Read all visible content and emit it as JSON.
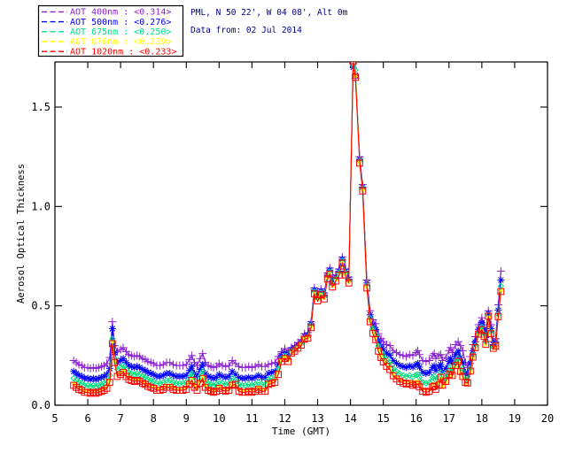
{
  "header": {
    "station_line": "PML, N 50 22', W 04 08', Alt 0m",
    "date_line": "Data from: 02 Jul 2014",
    "title_color": "#00008B"
  },
  "chart_data": {
    "type": "line",
    "title": "",
    "xlabel": "Time (GMT)",
    "ylabel": "Aerosol Optical Thickness",
    "xlim": [
      5,
      20
    ],
    "ylim": [
      0,
      1.727
    ],
    "xticks": [
      5,
      6,
      7,
      8,
      9,
      10,
      11,
      12,
      13,
      14,
      15,
      16,
      17,
      18,
      19,
      20
    ],
    "yticks": [
      0.0,
      0.5,
      1.0,
      1.5
    ],
    "ytick_labels": [
      "0.0",
      "0.5",
      "1.0",
      "1.5"
    ],
    "grid": false,
    "legend_position": "top-left",
    "x": [
      5.57,
      5.65,
      5.73,
      5.82,
      5.9,
      6.0,
      6.08,
      6.17,
      6.25,
      6.33,
      6.42,
      6.5,
      6.58,
      6.67,
      6.75,
      6.82,
      6.9,
      7.0,
      7.08,
      7.17,
      7.25,
      7.33,
      7.42,
      7.5,
      7.58,
      7.67,
      7.75,
      7.83,
      7.92,
      8.0,
      8.1,
      8.2,
      8.3,
      8.4,
      8.5,
      8.6,
      8.7,
      8.8,
      8.9,
      9.0,
      9.1,
      9.17,
      9.25,
      9.33,
      9.42,
      9.5,
      9.58,
      9.67,
      9.75,
      9.83,
      9.92,
      10.0,
      10.1,
      10.2,
      10.3,
      10.4,
      10.5,
      10.6,
      10.7,
      10.8,
      10.9,
      11.0,
      11.1,
      11.2,
      11.3,
      11.4,
      11.5,
      11.6,
      11.7,
      11.8,
      11.9,
      12.0,
      12.1,
      12.2,
      12.3,
      12.4,
      12.5,
      12.6,
      12.7,
      12.8,
      12.9,
      13.0,
      13.1,
      13.2,
      13.3,
      13.37,
      13.45,
      13.55,
      13.65,
      13.75,
      13.85,
      13.95,
      14.08,
      14.15,
      14.28,
      14.37,
      14.5,
      14.6,
      14.68,
      14.77,
      14.85,
      14.93,
      15.0,
      15.1,
      15.2,
      15.3,
      15.4,
      15.5,
      15.6,
      15.7,
      15.8,
      15.9,
      16.0,
      16.05,
      16.1,
      16.2,
      16.3,
      16.4,
      16.5,
      16.55,
      16.6,
      16.7,
      16.75,
      16.8,
      16.9,
      17.0,
      17.05,
      17.1,
      17.2,
      17.28,
      17.35,
      17.42,
      17.5,
      17.57,
      17.65,
      17.73,
      17.8,
      17.9,
      18.0,
      18.07,
      18.12,
      18.2,
      18.28,
      18.35,
      18.42,
      18.5,
      18.58
    ],
    "series": [
      {
        "name": "AOT  400nm",
        "mean_label": "<0.314>",
        "color": "#8B1FD1",
        "marker": "plus",
        "values": [
          0.225,
          0.215,
          0.205,
          0.2,
          0.19,
          0.19,
          0.185,
          0.19,
          0.185,
          0.19,
          0.195,
          0.2,
          0.21,
          0.24,
          0.42,
          0.3,
          0.27,
          0.28,
          0.29,
          0.27,
          0.255,
          0.25,
          0.245,
          0.25,
          0.245,
          0.235,
          0.23,
          0.22,
          0.215,
          0.21,
          0.2,
          0.2,
          0.205,
          0.215,
          0.215,
          0.205,
          0.2,
          0.2,
          0.2,
          0.205,
          0.23,
          0.25,
          0.215,
          0.2,
          0.235,
          0.26,
          0.215,
          0.2,
          0.195,
          0.19,
          0.195,
          0.21,
          0.2,
          0.195,
          0.2,
          0.225,
          0.21,
          0.195,
          0.19,
          0.19,
          0.195,
          0.19,
          0.195,
          0.205,
          0.195,
          0.195,
          0.205,
          0.21,
          0.215,
          0.245,
          0.27,
          0.285,
          0.27,
          0.29,
          0.3,
          0.315,
          0.33,
          0.36,
          0.365,
          0.42,
          0.59,
          0.555,
          0.585,
          0.565,
          0.665,
          0.69,
          0.625,
          0.655,
          0.685,
          0.745,
          0.685,
          0.645,
          1.72,
          1.645,
          1.25,
          1.11,
          0.63,
          0.475,
          0.43,
          0.41,
          0.36,
          0.335,
          0.32,
          0.305,
          0.3,
          0.275,
          0.265,
          0.255,
          0.25,
          0.245,
          0.255,
          0.25,
          0.265,
          0.275,
          0.255,
          0.225,
          0.22,
          0.225,
          0.25,
          0.26,
          0.235,
          0.25,
          0.255,
          0.225,
          0.24,
          0.275,
          0.29,
          0.265,
          0.305,
          0.32,
          0.3,
          0.275,
          0.215,
          0.19,
          0.245,
          0.305,
          0.345,
          0.405,
          0.44,
          0.405,
          0.365,
          0.475,
          0.405,
          0.32,
          0.335,
          0.505,
          0.675
        ]
      },
      {
        "name": "AOT  500nm",
        "mean_label": "<0.276>",
        "color": "#0000FF",
        "marker": "asterisk",
        "values": [
          0.17,
          0.16,
          0.15,
          0.145,
          0.135,
          0.135,
          0.13,
          0.135,
          0.13,
          0.135,
          0.14,
          0.145,
          0.155,
          0.185,
          0.385,
          0.265,
          0.215,
          0.225,
          0.235,
          0.215,
          0.2,
          0.195,
          0.19,
          0.195,
          0.19,
          0.18,
          0.175,
          0.165,
          0.16,
          0.155,
          0.145,
          0.145,
          0.15,
          0.16,
          0.16,
          0.15,
          0.145,
          0.145,
          0.145,
          0.15,
          0.175,
          0.195,
          0.16,
          0.145,
          0.18,
          0.205,
          0.16,
          0.145,
          0.14,
          0.135,
          0.14,
          0.155,
          0.145,
          0.14,
          0.145,
          0.17,
          0.155,
          0.14,
          0.135,
          0.135,
          0.14,
          0.135,
          0.14,
          0.15,
          0.14,
          0.14,
          0.16,
          0.165,
          0.17,
          0.205,
          0.25,
          0.265,
          0.25,
          0.278,
          0.288,
          0.303,
          0.318,
          0.348,
          0.353,
          0.41,
          0.58,
          0.545,
          0.575,
          0.555,
          0.655,
          0.68,
          0.615,
          0.645,
          0.675,
          0.735,
          0.675,
          0.635,
          1.7,
          1.66,
          1.238,
          1.098,
          0.615,
          0.455,
          0.405,
          0.38,
          0.325,
          0.298,
          0.28,
          0.262,
          0.252,
          0.225,
          0.212,
          0.2,
          0.195,
          0.19,
          0.198,
          0.192,
          0.205,
          0.21,
          0.192,
          0.165,
          0.16,
          0.165,
          0.19,
          0.198,
          0.175,
          0.192,
          0.205,
          0.17,
          0.185,
          0.22,
          0.235,
          0.212,
          0.255,
          0.272,
          0.24,
          0.215,
          0.165,
          0.155,
          0.21,
          0.275,
          0.318,
          0.382,
          0.415,
          0.38,
          0.34,
          0.462,
          0.385,
          0.305,
          0.318,
          0.478,
          0.63
        ]
      },
      {
        "name": "AOT  675nm",
        "mean_label": "<0.250>",
        "color": "#00E07F",
        "marker": "diamond",
        "values": [
          0.135,
          0.125,
          0.115,
          0.11,
          0.1,
          0.1,
          0.095,
          0.1,
          0.095,
          0.1,
          0.105,
          0.11,
          0.12,
          0.15,
          0.335,
          0.235,
          0.18,
          0.19,
          0.2,
          0.18,
          0.165,
          0.16,
          0.155,
          0.16,
          0.155,
          0.145,
          0.14,
          0.13,
          0.125,
          0.12,
          0.11,
          0.11,
          0.115,
          0.125,
          0.125,
          0.115,
          0.11,
          0.11,
          0.11,
          0.115,
          0.14,
          0.16,
          0.125,
          0.11,
          0.145,
          0.17,
          0.125,
          0.11,
          0.105,
          0.1,
          0.105,
          0.12,
          0.11,
          0.105,
          0.11,
          0.135,
          0.125,
          0.105,
          0.1,
          0.1,
          0.105,
          0.1,
          0.105,
          0.115,
          0.105,
          0.105,
          0.13,
          0.135,
          0.145,
          0.185,
          0.235,
          0.25,
          0.235,
          0.27,
          0.28,
          0.295,
          0.31,
          0.34,
          0.345,
          0.401,
          0.571,
          0.536,
          0.566,
          0.546,
          0.646,
          0.671,
          0.606,
          0.636,
          0.666,
          0.726,
          0.666,
          0.626,
          1.71,
          1.685,
          1.229,
          1.089,
          0.603,
          0.438,
          0.385,
          0.355,
          0.298,
          0.268,
          0.248,
          0.228,
          0.215,
          0.185,
          0.17,
          0.158,
          0.15,
          0.145,
          0.15,
          0.142,
          0.152,
          0.155,
          0.14,
          0.115,
          0.11,
          0.115,
          0.14,
          0.146,
          0.125,
          0.145,
          0.165,
          0.125,
          0.14,
          0.175,
          0.192,
          0.17,
          0.215,
          0.235,
          0.195,
          0.17,
          0.13,
          0.128,
          0.185,
          0.252,
          0.298,
          0.365,
          0.395,
          0.36,
          0.32,
          0.452,
          0.368,
          0.292,
          0.304,
          0.456,
          0.6
        ]
      },
      {
        "name": "AOT  870nm",
        "mean_label": "<0.239>",
        "color": "#FFFF00",
        "marker": "star",
        "values": [
          0.11,
          0.1,
          0.09,
          0.085,
          0.075,
          0.075,
          0.07,
          0.075,
          0.07,
          0.075,
          0.08,
          0.085,
          0.095,
          0.125,
          0.32,
          0.22,
          0.155,
          0.165,
          0.175,
          0.155,
          0.14,
          0.135,
          0.13,
          0.135,
          0.13,
          0.12,
          0.115,
          0.105,
          0.1,
          0.095,
          0.085,
          0.085,
          0.09,
          0.1,
          0.1,
          0.09,
          0.085,
          0.085,
          0.085,
          0.09,
          0.115,
          0.135,
          0.1,
          0.085,
          0.12,
          0.145,
          0.1,
          0.085,
          0.08,
          0.075,
          0.08,
          0.095,
          0.085,
          0.08,
          0.085,
          0.11,
          0.1,
          0.08,
          0.075,
          0.075,
          0.08,
          0.075,
          0.08,
          0.09,
          0.08,
          0.08,
          0.11,
          0.115,
          0.125,
          0.165,
          0.225,
          0.24,
          0.225,
          0.266,
          0.276,
          0.291,
          0.306,
          0.336,
          0.341,
          0.394,
          0.564,
          0.529,
          0.559,
          0.539,
          0.639,
          0.664,
          0.599,
          0.629,
          0.659,
          0.719,
          0.659,
          0.619,
          1.72,
          1.655,
          1.222,
          1.082,
          0.594,
          0.425,
          0.37,
          0.338,
          0.28,
          0.248,
          0.226,
          0.205,
          0.19,
          0.158,
          0.142,
          0.13,
          0.122,
          0.117,
          0.12,
          0.112,
          0.12,
          0.12,
          0.105,
          0.082,
          0.078,
          0.082,
          0.105,
          0.11,
          0.092,
          0.115,
          0.135,
          0.095,
          0.112,
          0.148,
          0.165,
          0.145,
          0.192,
          0.212,
          0.165,
          0.14,
          0.108,
          0.108,
          0.168,
          0.238,
          0.286,
          0.354,
          0.376,
          0.342,
          0.302,
          0.444,
          0.355,
          0.282,
          0.294,
          0.44,
          0.575
        ]
      },
      {
        "name": "AOT 1020nm",
        "mean_label": "<0.233>",
        "color": "#FF0000",
        "marker": "square",
        "values": [
          0.1,
          0.09,
          0.08,
          0.075,
          0.065,
          0.065,
          0.06,
          0.065,
          0.06,
          0.065,
          0.07,
          0.075,
          0.085,
          0.115,
          0.31,
          0.215,
          0.145,
          0.155,
          0.165,
          0.145,
          0.13,
          0.125,
          0.12,
          0.125,
          0.12,
          0.11,
          0.105,
          0.095,
          0.09,
          0.085,
          0.075,
          0.075,
          0.08,
          0.09,
          0.09,
          0.08,
          0.075,
          0.075,
          0.075,
          0.08,
          0.105,
          0.125,
          0.09,
          0.075,
          0.11,
          0.135,
          0.09,
          0.075,
          0.07,
          0.065,
          0.07,
          0.085,
          0.075,
          0.07,
          0.075,
          0.1,
          0.105,
          0.07,
          0.065,
          0.065,
          0.07,
          0.065,
          0.07,
          0.08,
          0.07,
          0.07,
          0.105,
          0.11,
          0.115,
          0.155,
          0.22,
          0.235,
          0.22,
          0.262,
          0.272,
          0.287,
          0.302,
          0.332,
          0.337,
          0.39,
          0.56,
          0.525,
          0.555,
          0.535,
          0.635,
          0.66,
          0.595,
          0.625,
          0.655,
          0.715,
          0.655,
          0.615,
          1.73,
          1.65,
          1.218,
          1.078,
          0.59,
          0.42,
          0.362,
          0.33,
          0.272,
          0.24,
          0.218,
          0.196,
          0.18,
          0.148,
          0.132,
          0.12,
          0.112,
          0.107,
          0.11,
          0.1,
          0.105,
          0.105,
          0.092,
          0.07,
          0.065,
          0.07,
          0.092,
          0.096,
          0.08,
          0.102,
          0.14,
          0.1,
          0.12,
          0.155,
          0.17,
          0.15,
          0.2,
          0.22,
          0.17,
          0.145,
          0.115,
          0.112,
          0.172,
          0.242,
          0.29,
          0.358,
          0.38,
          0.346,
          0.306,
          0.448,
          0.36,
          0.286,
          0.298,
          0.445,
          0.572
        ]
      }
    ]
  }
}
